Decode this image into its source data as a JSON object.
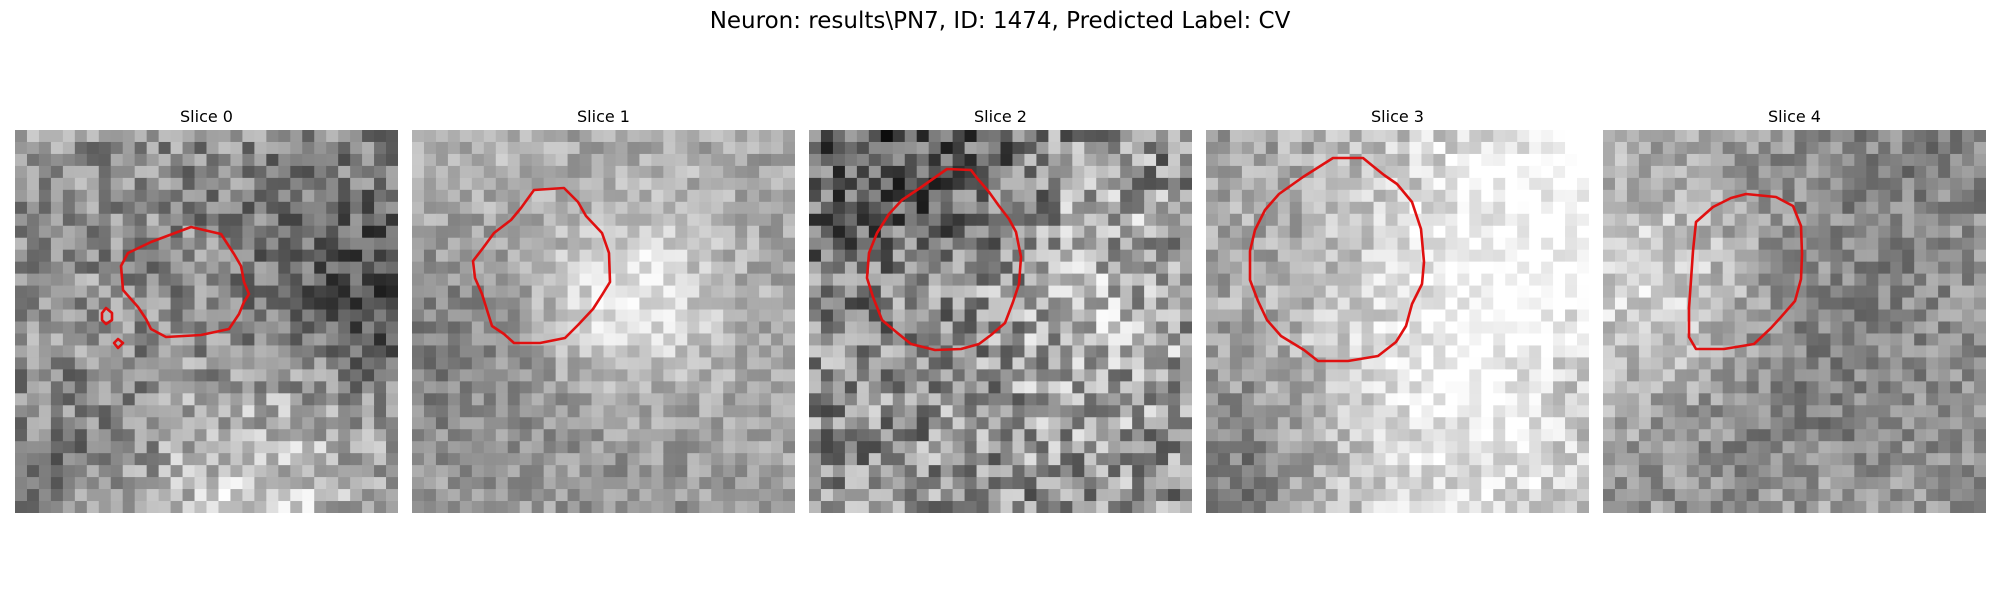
{
  "figure": {
    "title": "Neuron: results\\PN7, ID: 1474, Predicted Label: CV",
    "contour_color": "#e01010",
    "colormap": "gray",
    "slices": [
      {
        "label": "Slice 0",
        "seed": 11,
        "base_tone": 150,
        "noise": 55
      },
      {
        "label": "Slice 1",
        "seed": 23,
        "base_tone": 165,
        "noise": 35
      },
      {
        "label": "Slice 2",
        "seed": 37,
        "base_tone": 140,
        "noise": 75
      },
      {
        "label": "Slice 3",
        "seed": 41,
        "base_tone": 160,
        "noise": 40
      },
      {
        "label": "Slice 4",
        "seed": 53,
        "base_tone": 160,
        "noise": 40
      }
    ]
  }
}
